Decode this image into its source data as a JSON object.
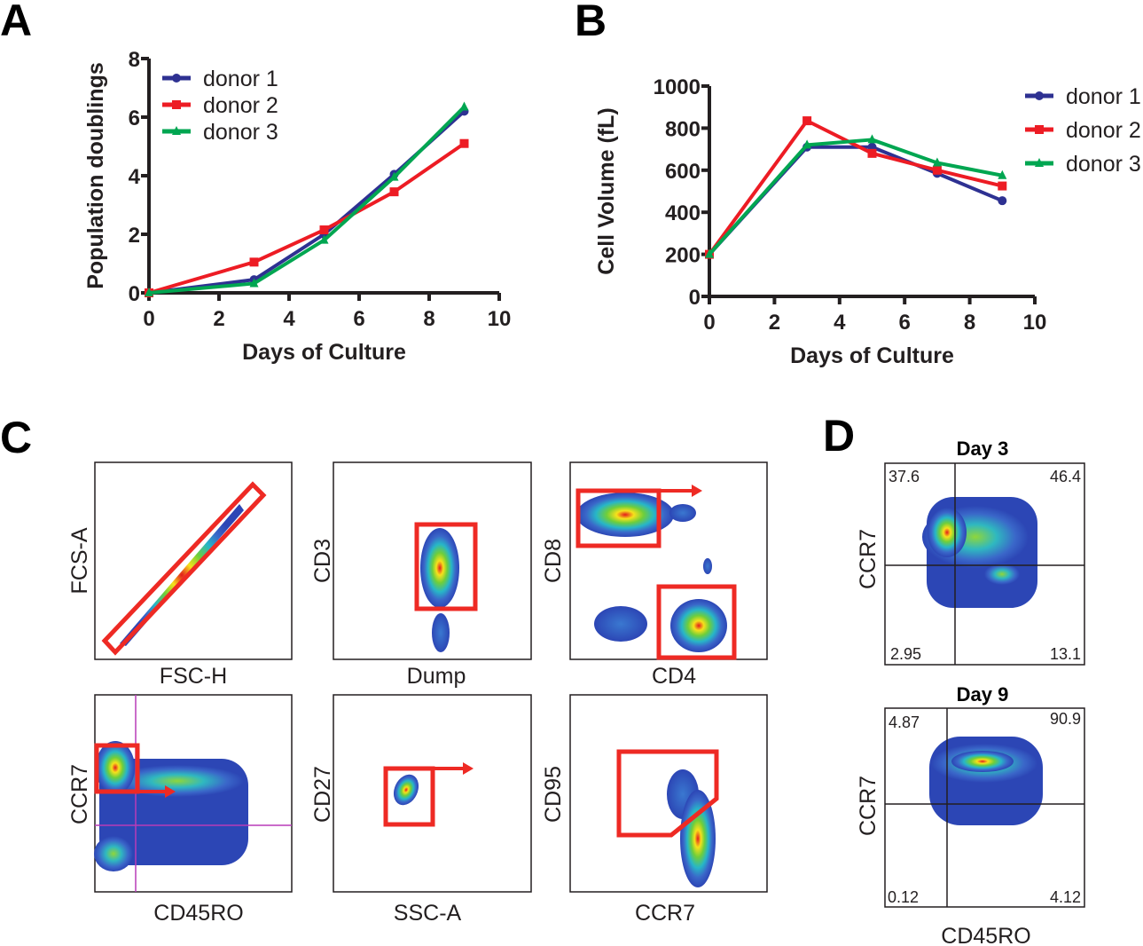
{
  "panels": {
    "a": "A",
    "b": "B",
    "c": "C",
    "d": "D"
  },
  "colors": {
    "donor1": "#2e3192",
    "donor2": "#ed1c24",
    "donor3": "#00a651",
    "gate": "#ee2a24"
  },
  "chart_data": [
    {
      "type": "line",
      "panel": "A",
      "xlabel": "Days of Culture",
      "ylabel": "Population doublings",
      "xlim": [
        0,
        10
      ],
      "ylim": [
        0,
        8
      ],
      "xticks": [
        0,
        2,
        4,
        6,
        8,
        10
      ],
      "yticks": [
        0,
        2,
        4,
        6,
        8
      ],
      "legend": "top-left",
      "grid": false,
      "x": [
        0,
        3,
        5,
        7,
        9
      ],
      "series": [
        {
          "name": "donor 1",
          "marker": "circle",
          "values": [
            0,
            0.45,
            2.0,
            4.05,
            6.2
          ]
        },
        {
          "name": "donor 2",
          "marker": "square",
          "values": [
            0,
            1.05,
            2.15,
            3.45,
            5.1
          ]
        },
        {
          "name": "donor 3",
          "marker": "triangle",
          "values": [
            0,
            0.32,
            1.8,
            3.95,
            6.35
          ]
        }
      ]
    },
    {
      "type": "line",
      "panel": "B",
      "xlabel": "Days of Culture",
      "ylabel": "Cell Volume (fL)",
      "xlim": [
        0,
        10
      ],
      "ylim": [
        0,
        1000
      ],
      "xticks": [
        0,
        2,
        4,
        6,
        8,
        10
      ],
      "yticks": [
        0,
        200,
        400,
        600,
        800,
        1000
      ],
      "legend": "right",
      "grid": false,
      "x": [
        0,
        3,
        5,
        7,
        9
      ],
      "series": [
        {
          "name": "donor 1",
          "marker": "circle",
          "values": [
            200,
            710,
            710,
            585,
            455
          ]
        },
        {
          "name": "donor 2",
          "marker": "square",
          "values": [
            200,
            835,
            680,
            600,
            525
          ]
        },
        {
          "name": "donor 3",
          "marker": "triangle",
          "values": [
            200,
            720,
            745,
            635,
            575
          ]
        }
      ]
    }
  ],
  "flow": {
    "c": [
      {
        "x": "FSC-H",
        "y": "FCS-A"
      },
      {
        "x": "Dump",
        "y": "CD3"
      },
      {
        "x": "CD4",
        "y": "CD8"
      },
      {
        "x": "CD45RO",
        "y": "CCR7"
      },
      {
        "x": "SSC-A",
        "y": "CD27"
      },
      {
        "x": "CCR7",
        "y": "CD95"
      }
    ],
    "d": {
      "xlabel": "CD45RO",
      "ylabel": "CCR7",
      "plots": [
        {
          "title": "Day 3",
          "tl": "37.6",
          "tr": "46.4",
          "bl": "2.95",
          "br": "13.1"
        },
        {
          "title": "Day 9",
          "tl": "4.87",
          "tr": "90.9",
          "bl": "0.12",
          "br": "4.12"
        }
      ]
    }
  }
}
